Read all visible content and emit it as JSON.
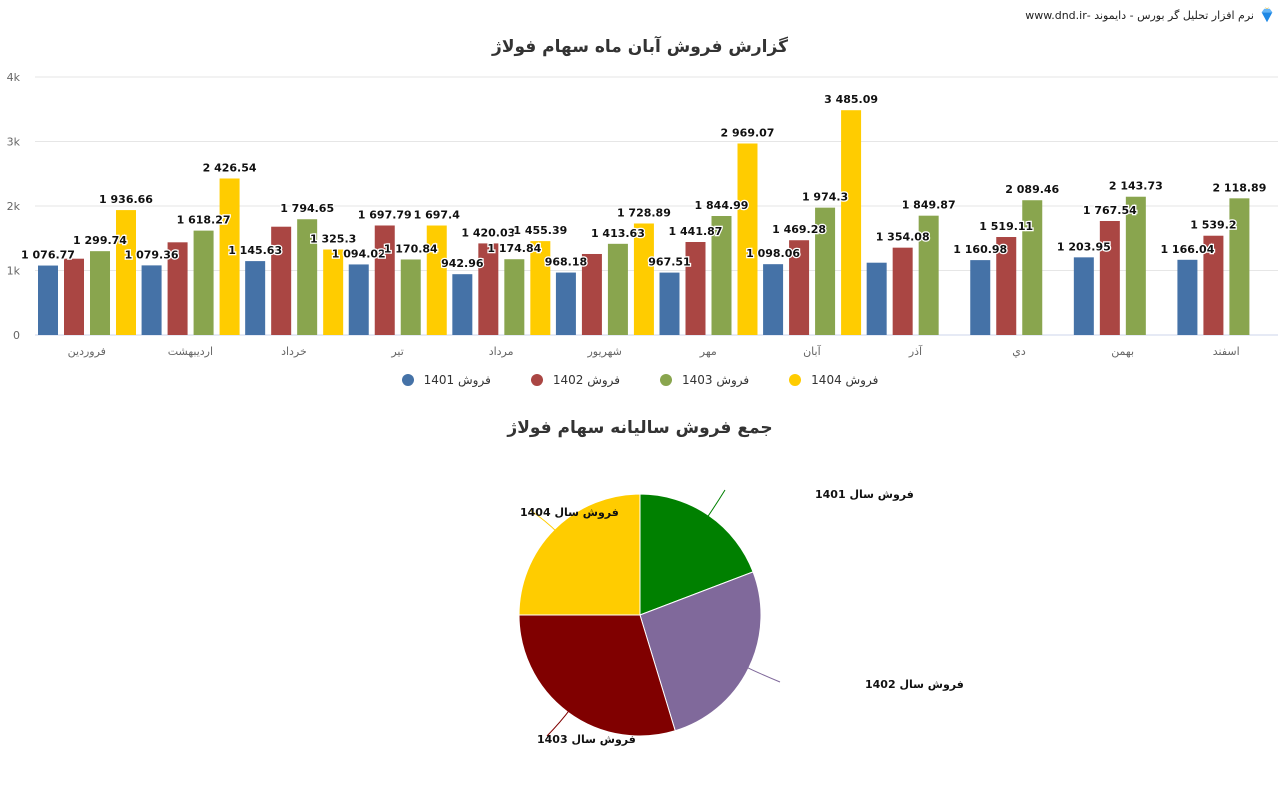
{
  "header": {
    "brand_text": "نرم افزار تحلیل گر بورس - دایموند -www.dnd.ir",
    "logo_icon": "diamond-icon"
  },
  "bar_chart": {
    "title": "گزارش فروش آبان ماه سهام فولاژ"
  },
  "pie_chart": {
    "title": "جمع فروش سالیانه سهام فولاژ"
  },
  "legend": {
    "items": [
      {
        "label": "فروش 1401",
        "color": "#4572A7"
      },
      {
        "label": "فروش 1402",
        "color": "#AA4643"
      },
      {
        "label": "فروش 1403",
        "color": "#89A54E"
      },
      {
        "label": "فروش 1404",
        "color": "#FFCC00"
      }
    ]
  },
  "chart_data": [
    {
      "type": "bar",
      "title": "گزارش فروش آبان ماه سهام فولاژ",
      "xlabel": "",
      "ylabel": "",
      "ylim": [
        0,
        4000
      ],
      "yticks": [
        "0",
        "1k",
        "2k",
        "3k",
        "4k"
      ],
      "grid": true,
      "legend_position": "bottom",
      "categories": [
        "فروردین",
        "اردیبهشت",
        "خرداد",
        "تیر",
        "مرداد",
        "شهریور",
        "مهر",
        "آبان",
        "آذر",
        "دي",
        "بهمن",
        "اسفند"
      ],
      "series": [
        {
          "name": "فروش 1401",
          "color": "#4572A7",
          "values": [
            1076.77,
            1079.36,
            1145.63,
            1094.02,
            942.96,
            968.18,
            967.51,
            1098.06,
            1121,
            1160.98,
            1203.95,
            1166.04
          ],
          "labels_shown": [
            true,
            true,
            true,
            true,
            true,
            true,
            true,
            true,
            false,
            true,
            true,
            true
          ]
        },
        {
          "name": "فروش 1402",
          "color": "#AA4643",
          "values": [
            1183,
            1437,
            1679,
            1697.79,
            1420.03,
            1256,
            1441.87,
            1469.28,
            1354.08,
            1519.11,
            1767.54,
            1539.2
          ],
          "labels_shown": [
            false,
            false,
            false,
            true,
            true,
            false,
            true,
            true,
            true,
            true,
            true,
            true
          ]
        },
        {
          "name": "فروش 1403",
          "color": "#89A54E",
          "values": [
            1299.74,
            1618.27,
            1794.65,
            1170.84,
            1174.84,
            1413.63,
            1844.99,
            1974.3,
            1849.87,
            2089.46,
            2143.73,
            2118.89
          ],
          "labels_shown": [
            true,
            true,
            true,
            true,
            true,
            true,
            true,
            true,
            true,
            true,
            true,
            true
          ]
        },
        {
          "name": "فروش 1404",
          "color": "#FFCC00",
          "values": [
            1936.66,
            2426.54,
            1325.3,
            1697.4,
            1455.39,
            1728.89,
            2969.07,
            3485.09,
            null,
            null,
            null,
            null
          ],
          "labels_shown": [
            true,
            true,
            true,
            true,
            true,
            true,
            true,
            true,
            false,
            false,
            false,
            false
          ]
        }
      ]
    },
    {
      "type": "pie",
      "title": "جمع فروش سالیانه سهام فولاژ",
      "start_angle": 0,
      "direction": "clockwise",
      "slices": [
        {
          "label": "فروش سال 1401",
          "value": 19.2,
          "color": "#008000"
        },
        {
          "label": "فروش سال 1402",
          "value": 26.1,
          "color": "#80699B"
        },
        {
          "label": "فروش سال 1403",
          "value": 29.7,
          "color": "#800000"
        },
        {
          "label": "فروش سال 1404",
          "value": 25.0,
          "color": "#FFCC00"
        }
      ]
    }
  ]
}
